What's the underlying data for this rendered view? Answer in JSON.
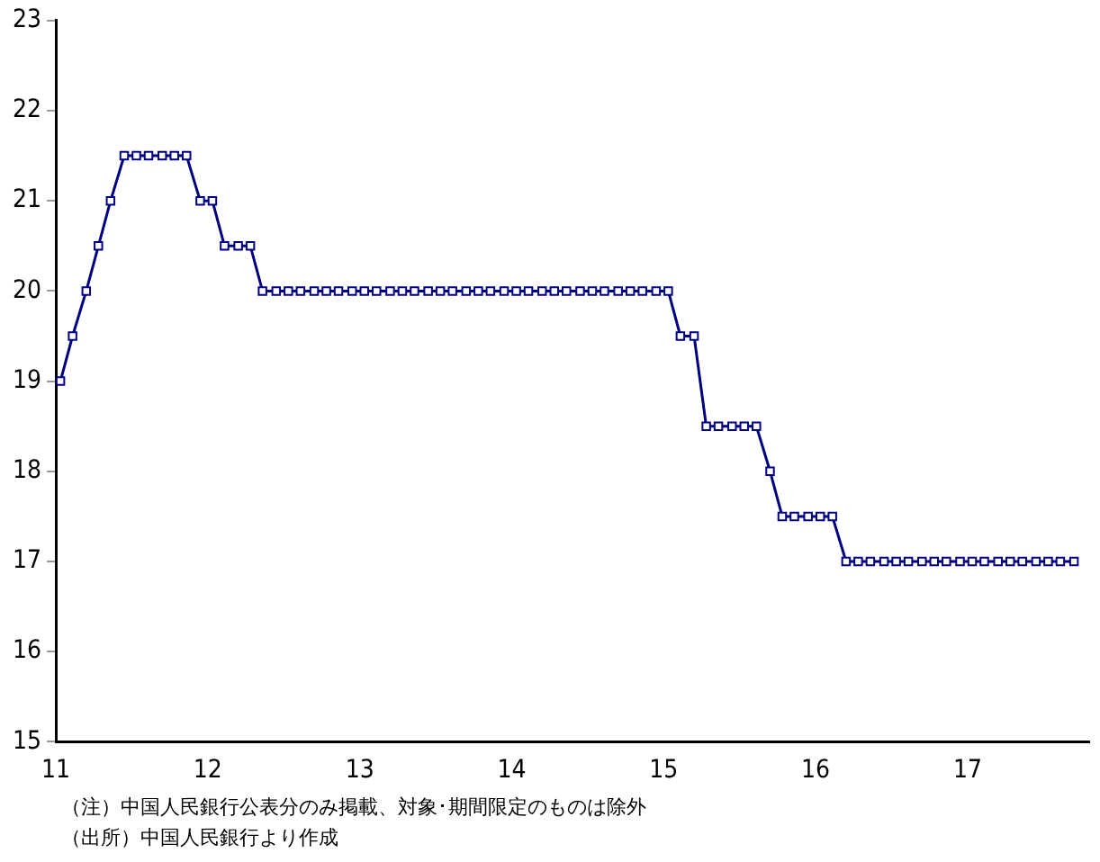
{
  "chart_data": {
    "type": "line",
    "x": [
      11.03,
      11.11,
      11.2,
      11.28,
      11.36,
      11.45,
      11.53,
      11.61,
      11.7,
      11.78,
      11.86,
      11.95,
      12.03,
      12.11,
      12.2,
      12.28,
      12.36,
      12.45,
      12.53,
      12.61,
      12.7,
      12.78,
      12.86,
      12.95,
      13.03,
      13.11,
      13.2,
      13.28,
      13.36,
      13.45,
      13.53,
      13.61,
      13.7,
      13.78,
      13.86,
      13.95,
      14.03,
      14.11,
      14.2,
      14.28,
      14.36,
      14.45,
      14.53,
      14.61,
      14.7,
      14.78,
      14.86,
      14.95,
      15.03,
      15.11,
      15.2,
      15.28,
      15.36,
      15.45,
      15.53,
      15.61,
      15.7,
      15.78,
      15.86,
      15.95,
      16.03,
      16.11,
      16.2,
      16.28,
      16.36,
      16.45,
      16.53,
      16.61,
      16.7,
      16.78,
      16.86,
      16.95,
      17.03,
      17.11,
      17.2,
      17.28,
      17.36,
      17.45,
      17.53,
      17.61,
      17.7
    ],
    "series": [
      {
        "color": "#000080",
        "values": [
          19,
          19.5,
          20,
          20.5,
          21,
          21.5,
          21.5,
          21.5,
          21.5,
          21.5,
          21.5,
          21,
          21,
          20.5,
          20.5,
          20.5,
          20,
          20,
          20,
          20,
          20,
          20,
          20,
          20,
          20,
          20,
          20,
          20,
          20,
          20,
          20,
          20,
          20,
          20,
          20,
          20,
          20,
          20,
          20,
          20,
          20,
          20,
          20,
          20,
          20,
          20,
          20,
          20,
          20,
          19.5,
          19.5,
          18.5,
          18.5,
          18.5,
          18.5,
          18.5,
          18,
          17.5,
          17.5,
          17.5,
          17.5,
          17.5,
          17,
          17,
          17,
          17,
          17,
          17,
          17,
          17,
          17,
          17,
          17,
          17,
          17,
          17,
          17,
          17,
          17,
          17,
          17
        ]
      }
    ],
    "xlim": [
      11,
      17.8
    ],
    "xticks": [
      11,
      12,
      13,
      14,
      15,
      16,
      17
    ],
    "ylim": [
      15,
      23
    ],
    "yticks": [
      15,
      16,
      17,
      18,
      19,
      20,
      21,
      22,
      23
    ],
    "marker": "square",
    "line_style": "solid",
    "grid": false,
    "legend": false,
    "annotations": [
      "（注）中国人民銀行公表分のみ掲載、対象･期間限定のものは除外",
      "（出所）中国人民銀行より作成"
    ]
  }
}
